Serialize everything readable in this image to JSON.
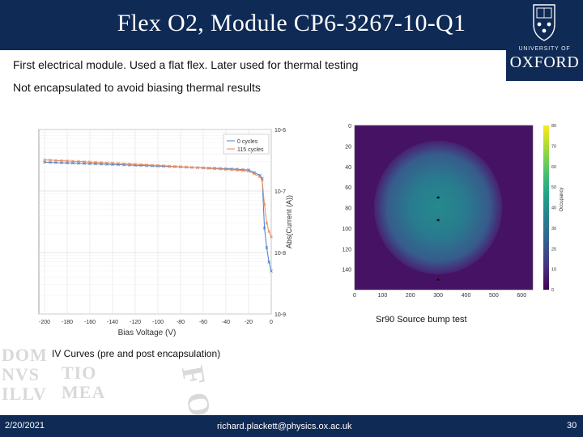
{
  "slide": {
    "title": "Flex O2, Module CP6-3267-10-Q1",
    "line1": "First electrical module. Used a flat flex. Later used for thermal testing",
    "line2": "Not encapsulated to avoid biasing thermal results",
    "caption_iv": "IV Curves (pre and post encapsulation)",
    "caption_source": "Sr90 Source bump test",
    "footer_date": "2/20/2021",
    "footer_email": "richard.plackett@physics.ox.ac.uk",
    "page_number": "30"
  },
  "logo": {
    "university": "UNIVERSITY OF",
    "name": "OXFORD"
  },
  "watermark": [
    "DOM",
    "TIO",
    "NVS",
    "ILLV",
    "MEA",
    "F O"
  ],
  "chart_data": [
    {
      "type": "line",
      "title": "",
      "xlabel": "Bias Voltage (V)",
      "ylabel": "Abs(Current (A))",
      "xlim": [
        -205,
        0
      ],
      "ylim": [
        1e-09,
        1e-06
      ],
      "yscale": "log",
      "y_axis_side": "right",
      "xticks": [
        -200,
        -180,
        -160,
        -140,
        -120,
        -100,
        -80,
        -60,
        -40,
        -20,
        0
      ],
      "xtick_labels": [
        "-200",
        "-180",
        "-160",
        "-140",
        "-120",
        "-100",
        "-80",
        "-60",
        "-40",
        "-20",
        "0"
      ],
      "yticks": [
        1e-09,
        1e-08,
        1e-07,
        1e-06
      ],
      "ytick_labels": [
        "10-9",
        "10-8",
        "10-7",
        "10-6"
      ],
      "grid": true,
      "legend_position": "top-right",
      "series": [
        {
          "name": "0 cycles",
          "color": "#4a7fc8",
          "marker": "x",
          "x": [
            -200,
            -195,
            -190,
            -185,
            -180,
            -175,
            -170,
            -165,
            -160,
            -155,
            -150,
            -145,
            -140,
            -135,
            -130,
            -125,
            -120,
            -115,
            -110,
            -105,
            -100,
            -95,
            -90,
            -85,
            -80,
            -75,
            -70,
            -65,
            -60,
            -55,
            -50,
            -45,
            -40,
            -35,
            -30,
            -25,
            -20,
            -15,
            -10,
            -8,
            -6,
            -4,
            -2,
            0
          ],
          "y": [
            2.95e-07,
            2.92e-07,
            2.9e-07,
            2.88e-07,
            2.86e-07,
            2.84e-07,
            2.82e-07,
            2.8e-07,
            2.78e-07,
            2.76e-07,
            2.74e-07,
            2.72e-07,
            2.7e-07,
            2.68e-07,
            2.66e-07,
            2.64e-07,
            2.62e-07,
            2.6e-07,
            2.58e-07,
            2.56e-07,
            2.54e-07,
            2.52e-07,
            2.5e-07,
            2.48e-07,
            2.46e-07,
            2.44e-07,
            2.42e-07,
            2.4e-07,
            2.38e-07,
            2.36e-07,
            2.34e-07,
            2.32e-07,
            2.3e-07,
            2.28e-07,
            2.26e-07,
            2.22e-07,
            2.2e-07,
            2e-07,
            1.8e-07,
            1.6e-07,
            2.5e-08,
            1.2e-08,
            7e-09,
            5e-09
          ]
        },
        {
          "name": "115 cycles",
          "color": "#e8895a",
          "marker": "x",
          "x": [
            -200,
            -195,
            -190,
            -185,
            -180,
            -175,
            -170,
            -165,
            -160,
            -155,
            -150,
            -145,
            -140,
            -135,
            -130,
            -125,
            -120,
            -115,
            -110,
            -105,
            -100,
            -95,
            -90,
            -85,
            -80,
            -75,
            -70,
            -65,
            -60,
            -55,
            -50,
            -45,
            -40,
            -35,
            -30,
            -25,
            -20,
            -15,
            -10,
            -8,
            -6,
            -4,
            -2,
            0
          ],
          "y": [
            3.2e-07,
            3.17e-07,
            3.14e-07,
            3.11e-07,
            3.08e-07,
            3.05e-07,
            3.02e-07,
            2.99e-07,
            2.96e-07,
            2.93e-07,
            2.9e-07,
            2.87e-07,
            2.84e-07,
            2.81e-07,
            2.78e-07,
            2.75e-07,
            2.72e-07,
            2.69e-07,
            2.66e-07,
            2.63e-07,
            2.6e-07,
            2.57e-07,
            2.54e-07,
            2.51e-07,
            2.48e-07,
            2.45e-07,
            2.42e-07,
            2.39e-07,
            2.36e-07,
            2.33e-07,
            2.3e-07,
            2.27e-07,
            2.24e-07,
            2.21e-07,
            2.18e-07,
            2.15e-07,
            2.1e-07,
            1.9e-07,
            1.7e-07,
            1.5e-07,
            6e-08,
            3e-08,
            2.2e-08,
            1.8e-08
          ]
        }
      ]
    },
    {
      "type": "heatmap",
      "title": "",
      "xlabel": "",
      "ylabel": "",
      "colorbar_label": "Occupancy",
      "xlim": [
        0,
        640
      ],
      "ylim": [
        0,
        160
      ],
      "xticks": [
        0,
        100,
        200,
        300,
        400,
        500,
        600
      ],
      "xtick_labels": [
        "0",
        "100",
        "200",
        "300",
        "400",
        "500",
        "600"
      ],
      "yticks": [
        0,
        20,
        40,
        60,
        80,
        100,
        120,
        140
      ],
      "ytick_labels": [
        "0",
        "20",
        "40",
        "60",
        "80",
        "100",
        "120",
        "140"
      ],
      "colorbar_range": [
        0,
        80
      ],
      "colorbar_ticks": [
        0,
        10,
        20,
        30,
        40,
        50,
        60,
        70,
        80
      ],
      "colorbar_tick_labels": [
        "0",
        "10",
        "20",
        "30",
        "40",
        "50",
        "60",
        "70",
        "80"
      ],
      "colormap": "viridis",
      "background_occupancy": 4,
      "blob": {
        "center_x": 300,
        "center_y": 80,
        "radius_x": 230,
        "radius_y": 65,
        "peak_occupancy": 38
      }
    }
  ]
}
